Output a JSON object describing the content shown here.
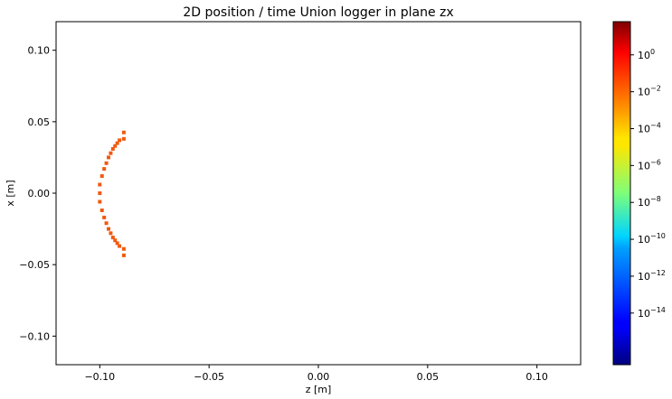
{
  "chart_data": {
    "type": "heatmap",
    "title": "2D position / time Union logger in plane zx",
    "xlabel": "z [m]",
    "ylabel": "x [m]",
    "xlim": [
      -0.12,
      0.12
    ],
    "ylim": [
      -0.12,
      0.12
    ],
    "x_ticks": [
      {
        "value": -0.1,
        "label": "−0.10"
      },
      {
        "value": -0.05,
        "label": "−0.05"
      },
      {
        "value": 0.0,
        "label": "0.00"
      },
      {
        "value": 0.05,
        "label": "0.05"
      },
      {
        "value": 0.1,
        "label": "0.10"
      }
    ],
    "y_ticks": [
      {
        "value": 0.1,
        "label": "0.10"
      },
      {
        "value": 0.05,
        "label": "0.05"
      },
      {
        "value": 0.0,
        "label": "0.00"
      },
      {
        "value": -0.05,
        "label": "−0.05"
      },
      {
        "value": -0.1,
        "label": "−0.10"
      }
    ],
    "colorbar": {
      "colormap": "jet",
      "scale": "log",
      "range_exponent": [
        -16.8,
        1.8
      ],
      "ticks": [
        {
          "exponent": 0,
          "label": "10",
          "sup": "0"
        },
        {
          "exponent": -2,
          "label": "10",
          "sup": "−2"
        },
        {
          "exponent": -4,
          "label": "10",
          "sup": "−4"
        },
        {
          "exponent": -6,
          "label": "10",
          "sup": "−6"
        },
        {
          "exponent": -8,
          "label": "10",
          "sup": "−8"
        },
        {
          "exponent": -10,
          "label": "10",
          "sup": "−10"
        },
        {
          "exponent": -12,
          "label": "10",
          "sup": "−12"
        },
        {
          "exponent": -14,
          "label": "10",
          "sup": "−14"
        }
      ]
    },
    "cell_color": "#f05a10",
    "series": [
      {
        "cells": [
          {
            "x": -0.089,
            "x_pos": 0.0425
          },
          {
            "x": -0.089,
            "x_pos": 0.038
          },
          {
            "x": -0.091,
            "x_pos": 0.037
          },
          {
            "x": -0.092,
            "x_pos": 0.035
          },
          {
            "x": -0.093,
            "x_pos": 0.033
          },
          {
            "x": -0.094,
            "x_pos": 0.031
          },
          {
            "x": -0.095,
            "x_pos": 0.028
          },
          {
            "x": -0.096,
            "x_pos": 0.025
          },
          {
            "x": -0.097,
            "x_pos": 0.021
          },
          {
            "x": -0.098,
            "x_pos": 0.017
          },
          {
            "x": -0.099,
            "x_pos": 0.012
          },
          {
            "x": -0.1,
            "x_pos": 0.006
          },
          {
            "x": -0.1,
            "x_pos": 0.0
          },
          {
            "x": -0.1,
            "x_pos": -0.006
          },
          {
            "x": -0.099,
            "x_pos": -0.012
          },
          {
            "x": -0.098,
            "x_pos": -0.017
          },
          {
            "x": -0.097,
            "x_pos": -0.021
          },
          {
            "x": -0.096,
            "x_pos": -0.025
          },
          {
            "x": -0.095,
            "x_pos": -0.028
          },
          {
            "x": -0.094,
            "x_pos": -0.031
          },
          {
            "x": -0.093,
            "x_pos": -0.033
          },
          {
            "x": -0.092,
            "x_pos": -0.035
          },
          {
            "x": -0.091,
            "x_pos": -0.037
          },
          {
            "x": -0.089,
            "x_pos": -0.039
          },
          {
            "x": -0.089,
            "x_pos": -0.0435
          }
        ]
      }
    ],
    "grid": false
  }
}
